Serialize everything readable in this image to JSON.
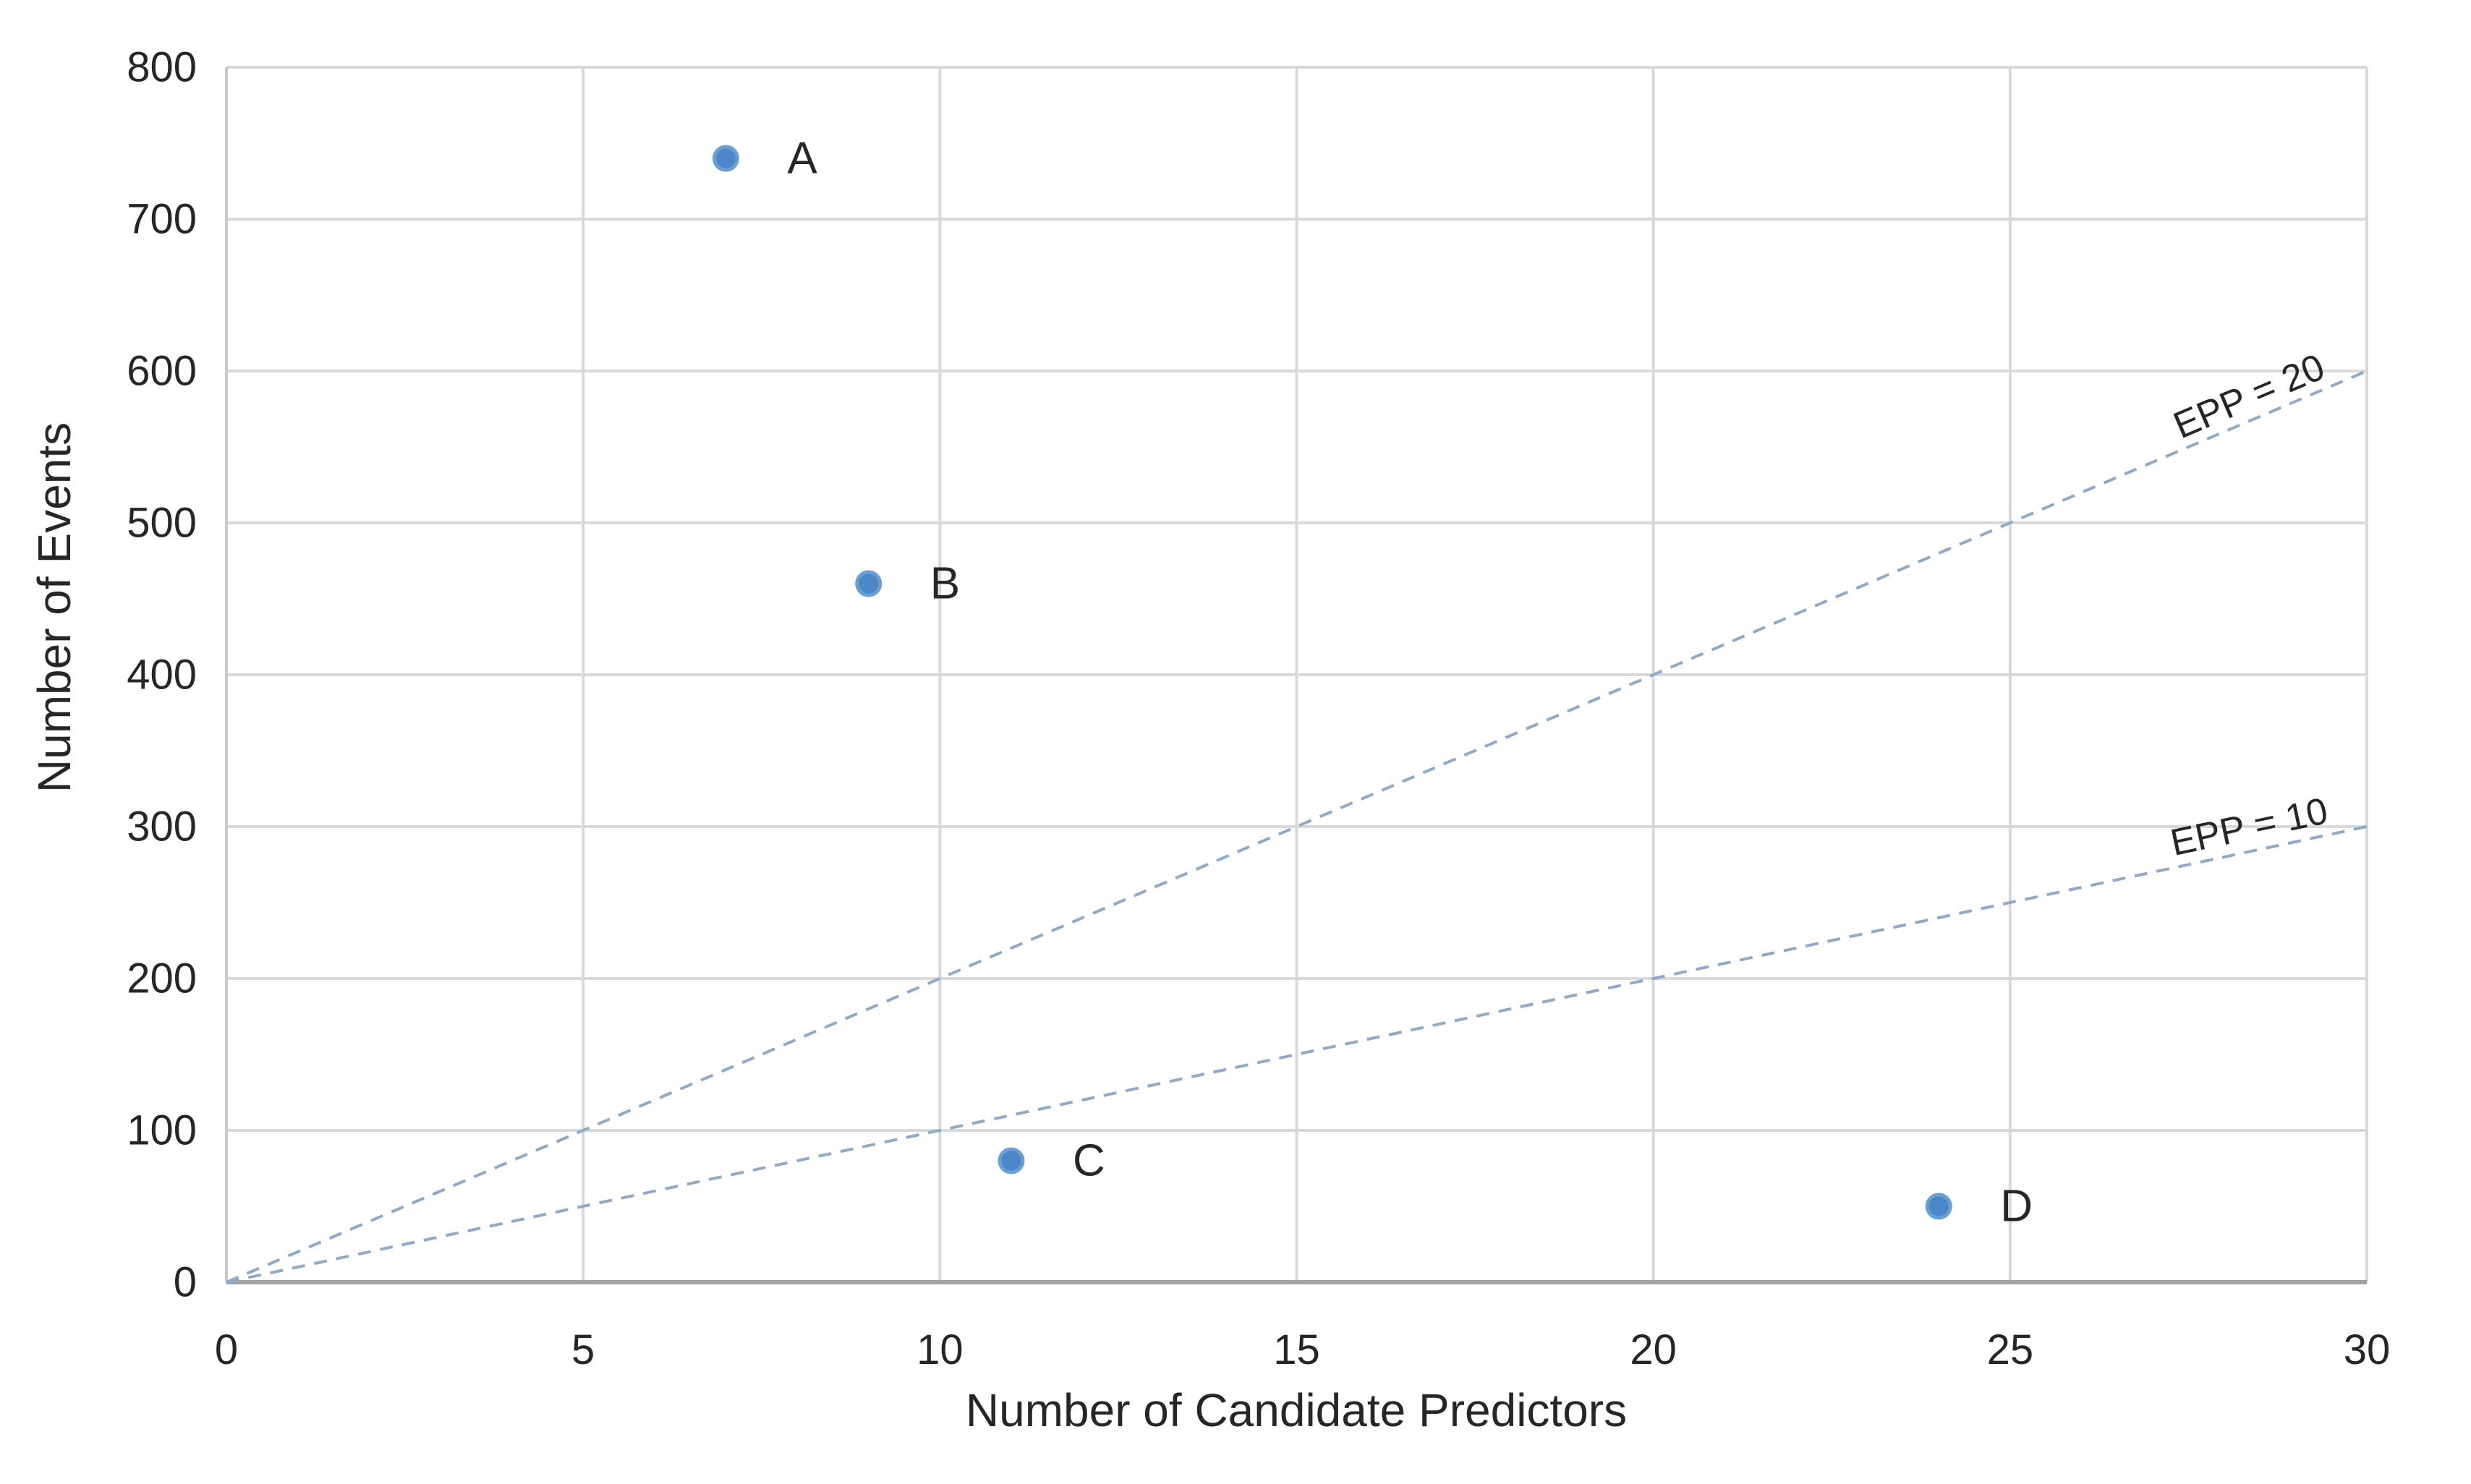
{
  "figure": {
    "background": "#ffffff"
  },
  "chart_data": {
    "type": "scatter",
    "title": "",
    "xlabel": "Number of Candidate Predictors",
    "ylabel": "Number of Events",
    "xlim": [
      0,
      30
    ],
    "ylim": [
      0,
      800
    ],
    "xticks": [
      0,
      5,
      10,
      15,
      20,
      25,
      30
    ],
    "yticks": [
      0,
      100,
      200,
      300,
      400,
      500,
      600,
      700,
      800
    ],
    "grid": true,
    "legend_position": "none",
    "points": [
      {
        "label": "A",
        "x": 7,
        "y": 740
      },
      {
        "label": "B",
        "x": 9,
        "y": 460
      },
      {
        "label": "C",
        "x": 11,
        "y": 80
      },
      {
        "label": "D",
        "x": 24,
        "y": 50
      }
    ],
    "reference_lines": [
      {
        "label": "EPP = 20",
        "slope": 20,
        "x_start": 0,
        "x_end": 30,
        "y_start": 0,
        "y_end": 600,
        "style": "dashed"
      },
      {
        "label": "EPP = 10",
        "slope": 10,
        "x_start": 0,
        "x_end": 30,
        "y_start": 0,
        "y_end": 300,
        "style": "dashed"
      }
    ],
    "colors": {
      "point": "#4a86c8",
      "point_edge": "#6b9fd2",
      "reference_line": "#8fa9c9",
      "gridline": "#d9d9d9",
      "x_axis_line": "#a3a3a3",
      "y_axis_line": "#c9c9c9",
      "text": "#262626",
      "ref_label_text": "#3d3d3d"
    }
  }
}
